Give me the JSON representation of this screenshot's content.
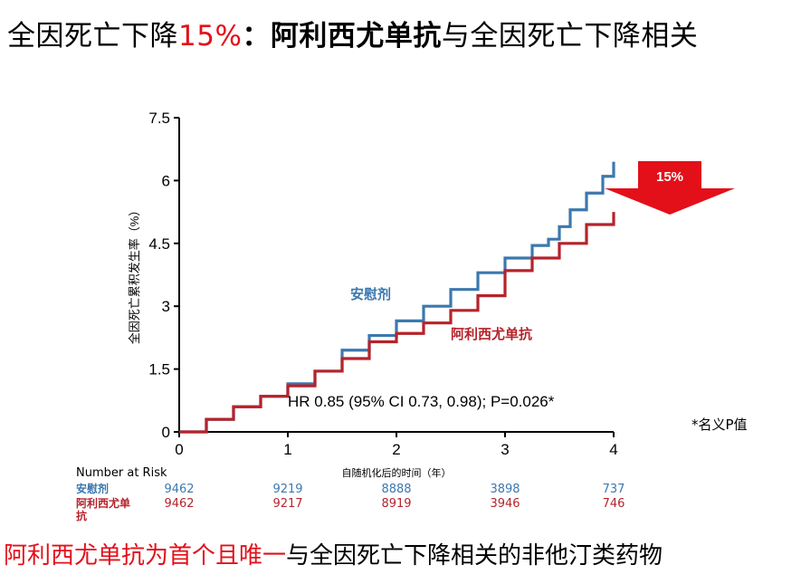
{
  "title": {
    "part1": "全因死亡下降",
    "highlight": "15%",
    "colon": "：",
    "drug_bold": "阿利西尤单抗",
    "part2": "与全因死亡下降相关"
  },
  "footer": {
    "red_part": "阿利西尤单抗为首个且唯一",
    "black_part": "与全因死亡下降相关的非他汀类药物"
  },
  "note": "*名义P值",
  "arrow_label": "15%",
  "colors": {
    "placebo": "#3c78ae",
    "drug": "#b5232b",
    "accent": "#e3101a"
  },
  "chart_data": {
    "type": "line",
    "ylabel": "全因死亡累积发生率（%）",
    "xlabel": "自随机化后的时间（年）",
    "xlim": [
      0,
      4
    ],
    "ylim": [
      0,
      7.5
    ],
    "xticks": [
      "0",
      "1",
      "2",
      "3",
      "4"
    ],
    "yticks": [
      "0",
      "1.5",
      "3",
      "4.5",
      "6",
      "7.5"
    ],
    "annotation": "HR 0.85 (95% CI 0.73, 0.98); P=0.026*",
    "series": [
      {
        "name": "安慰剂",
        "color": "#3c78ae",
        "x": [
          0,
          0.25,
          0.5,
          0.75,
          1.0,
          1.25,
          1.5,
          1.75,
          2.0,
          2.25,
          2.5,
          2.75,
          3.0,
          3.25,
          3.4,
          3.5,
          3.6,
          3.75,
          3.9,
          4.0
        ],
        "y": [
          0,
          0.3,
          0.6,
          0.85,
          1.15,
          1.45,
          1.95,
          2.3,
          2.65,
          3.0,
          3.4,
          3.8,
          4.15,
          4.45,
          4.6,
          4.9,
          5.3,
          5.7,
          6.1,
          6.45
        ]
      },
      {
        "name": "阿利西尤单抗",
        "color": "#b5232b",
        "x": [
          0,
          0.25,
          0.5,
          0.75,
          1.0,
          1.25,
          1.5,
          1.75,
          2.0,
          2.25,
          2.5,
          2.75,
          3.0,
          3.25,
          3.5,
          3.75,
          4.0
        ],
        "y": [
          0,
          0.3,
          0.6,
          0.85,
          1.1,
          1.45,
          1.75,
          2.15,
          2.35,
          2.6,
          2.9,
          3.25,
          3.85,
          4.15,
          4.5,
          4.95,
          5.25
        ]
      }
    ]
  },
  "risk_table": {
    "header": "Number at Risk",
    "rows": [
      {
        "label": "安慰剂",
        "color": "#3c78ae",
        "values": [
          "9462",
          "9219",
          "8888",
          "3898",
          "737"
        ]
      },
      {
        "label": "阿利西尤单抗",
        "color": "#b5232b",
        "values": [
          "9462",
          "9217",
          "8919",
          "3946",
          "746"
        ]
      }
    ]
  }
}
